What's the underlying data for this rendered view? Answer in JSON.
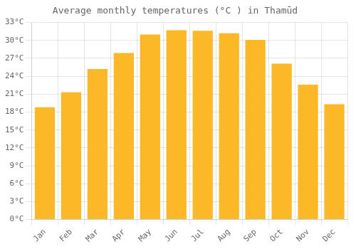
{
  "chart_data": {
    "type": "bar",
    "title": "Average monthly temperatures (°C ) in Thamūd",
    "categories": [
      "Jan",
      "Feb",
      "Mar",
      "Apr",
      "May",
      "Jun",
      "Jul",
      "Aug",
      "Sep",
      "Oct",
      "Nov",
      "Dec"
    ],
    "values": [
      18.8,
      21.3,
      25.2,
      27.9,
      31.0,
      31.7,
      31.6,
      31.2,
      30.1,
      26.1,
      22.6,
      19.3
    ],
    "color": "#FDB827",
    "ylim": [
      0,
      33
    ],
    "yticks": [
      {
        "value": 0,
        "label": "0°C"
      },
      {
        "value": 3,
        "label": "3°C"
      },
      {
        "value": 6,
        "label": "6°C"
      },
      {
        "value": 9,
        "label": "9°C"
      },
      {
        "value": 12,
        "label": "12°C"
      },
      {
        "value": 15,
        "label": "15°C"
      },
      {
        "value": 18,
        "label": "18°C"
      },
      {
        "value": 21,
        "label": "21°C"
      },
      {
        "value": 24,
        "label": "24°C"
      },
      {
        "value": 27,
        "label": "27°C"
      },
      {
        "value": 30,
        "label": "30°C"
      },
      {
        "value": 33,
        "label": "33°C"
      }
    ],
    "grid": true
  }
}
